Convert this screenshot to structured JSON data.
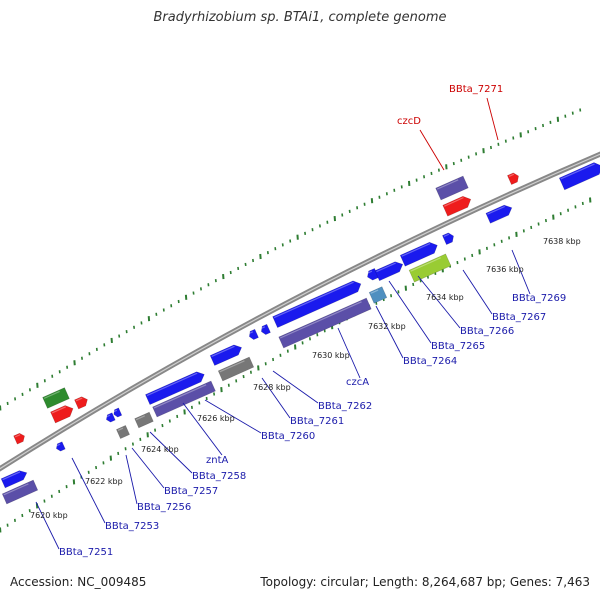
{
  "title": "Bradyrhizobium sp. BTAi1, complete genome",
  "footer": {
    "accession": "Accession: NC_009485",
    "stats": "Topology: circular; Length: 8,264,687 bp; Genes: 7,463"
  },
  "colors": {
    "backbone": "#888888",
    "tick": "#2e7d32",
    "gene_blue": "#1a1aee",
    "gene_purple": "#5b4fa8",
    "gene_gray": "#777777",
    "gene_red": "#ee1c1c",
    "gene_green": "#2e8b2e",
    "gene_lime": "#99cc33",
    "gene_light_blue": "#4f8fc0",
    "label_blue": "#1a1aaa",
    "label_red": "#cc0000"
  },
  "scale_labels": [
    "7620 kbp",
    "7622 kbp",
    "7624 kbp",
    "7626 kbp",
    "7628 kbp",
    "7630 kbp",
    "7632 kbp",
    "7634 kbp",
    "7636 kbp",
    "7638 kbp"
  ],
  "gene_labels_bottom": [
    "BBta_7251",
    "BBta_7253",
    "BBta_7256",
    "BBta_7257",
    "BBta_7258",
    "zntA",
    "BBta_7260",
    "BBta_7261",
    "BBta_7262",
    "czcA",
    "BBta_7264",
    "BBta_7265",
    "BBta_7266",
    "BBta_7267",
    "BBta_7269"
  ],
  "gene_labels_top": [
    "czcD",
    "BBta_7271"
  ]
}
